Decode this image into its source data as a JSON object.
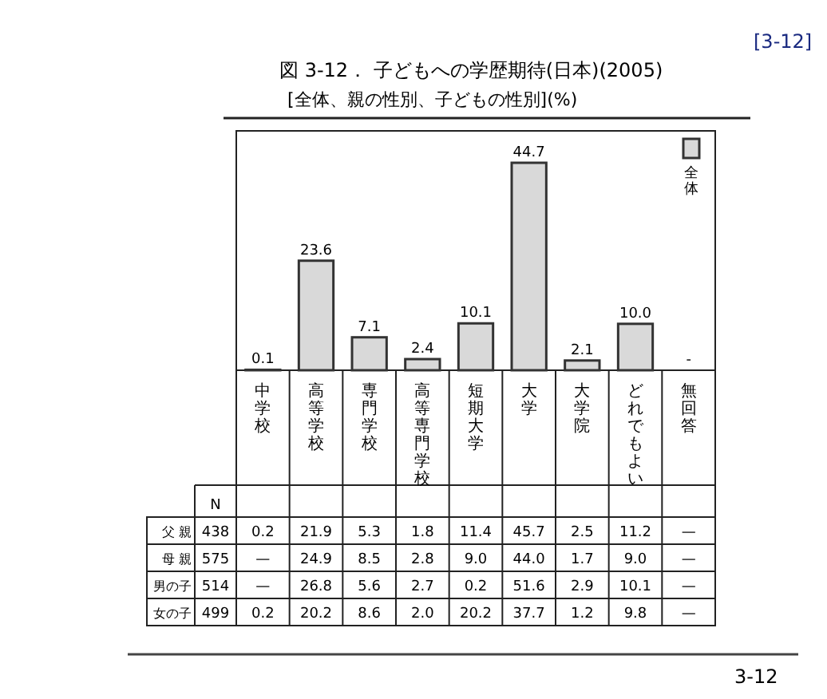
{
  "chart_data": {
    "type": "bar",
    "title": "図 3-12． 子どもへの学歴期待(日本)(2005)",
    "subtitle": "[全体、親の性別、子どもの性別](%)",
    "categories": [
      "中学校",
      "高等学校",
      "専門学校",
      "高等専門学校",
      "短期大学",
      "大学",
      "大学院",
      "どれでもよい",
      "無回答"
    ],
    "series": [
      {
        "name": "全体",
        "color": "#d9d9d9",
        "values": [
          0.1,
          23.6,
          7.1,
          2.4,
          10.1,
          44.7,
          2.1,
          10.0,
          null
        ],
        "value_labels": [
          "0.1",
          "23.6",
          "7.1",
          "2.4",
          "10.1",
          "44.7",
          "2.1",
          "10.0",
          "-"
        ]
      }
    ],
    "legend": "top right",
    "annotations": [
      "[3-12]",
      "3-12",
      "N",
      "父 親",
      "438",
      "0.2",
      "21.9",
      "5.3",
      "1.8",
      "11.4",
      "45.7",
      "2.5",
      "11.2",
      "—",
      "母 親",
      "575",
      "—",
      "24.9",
      "8.5",
      "2.8",
      "9.0",
      "44.0",
      "1.7",
      "9.0",
      "—",
      "男の子",
      "514",
      "—",
      "26.8",
      "5.6",
      "2.7",
      "0.2",
      "51.6",
      "2.9",
      "10.1",
      "—",
      "女の子",
      "499",
      "0.2",
      "20.2",
      "8.6",
      "2.0",
      "20.2",
      "37.7",
      "1.2",
      "9.8",
      "—"
    ]
  }
}
